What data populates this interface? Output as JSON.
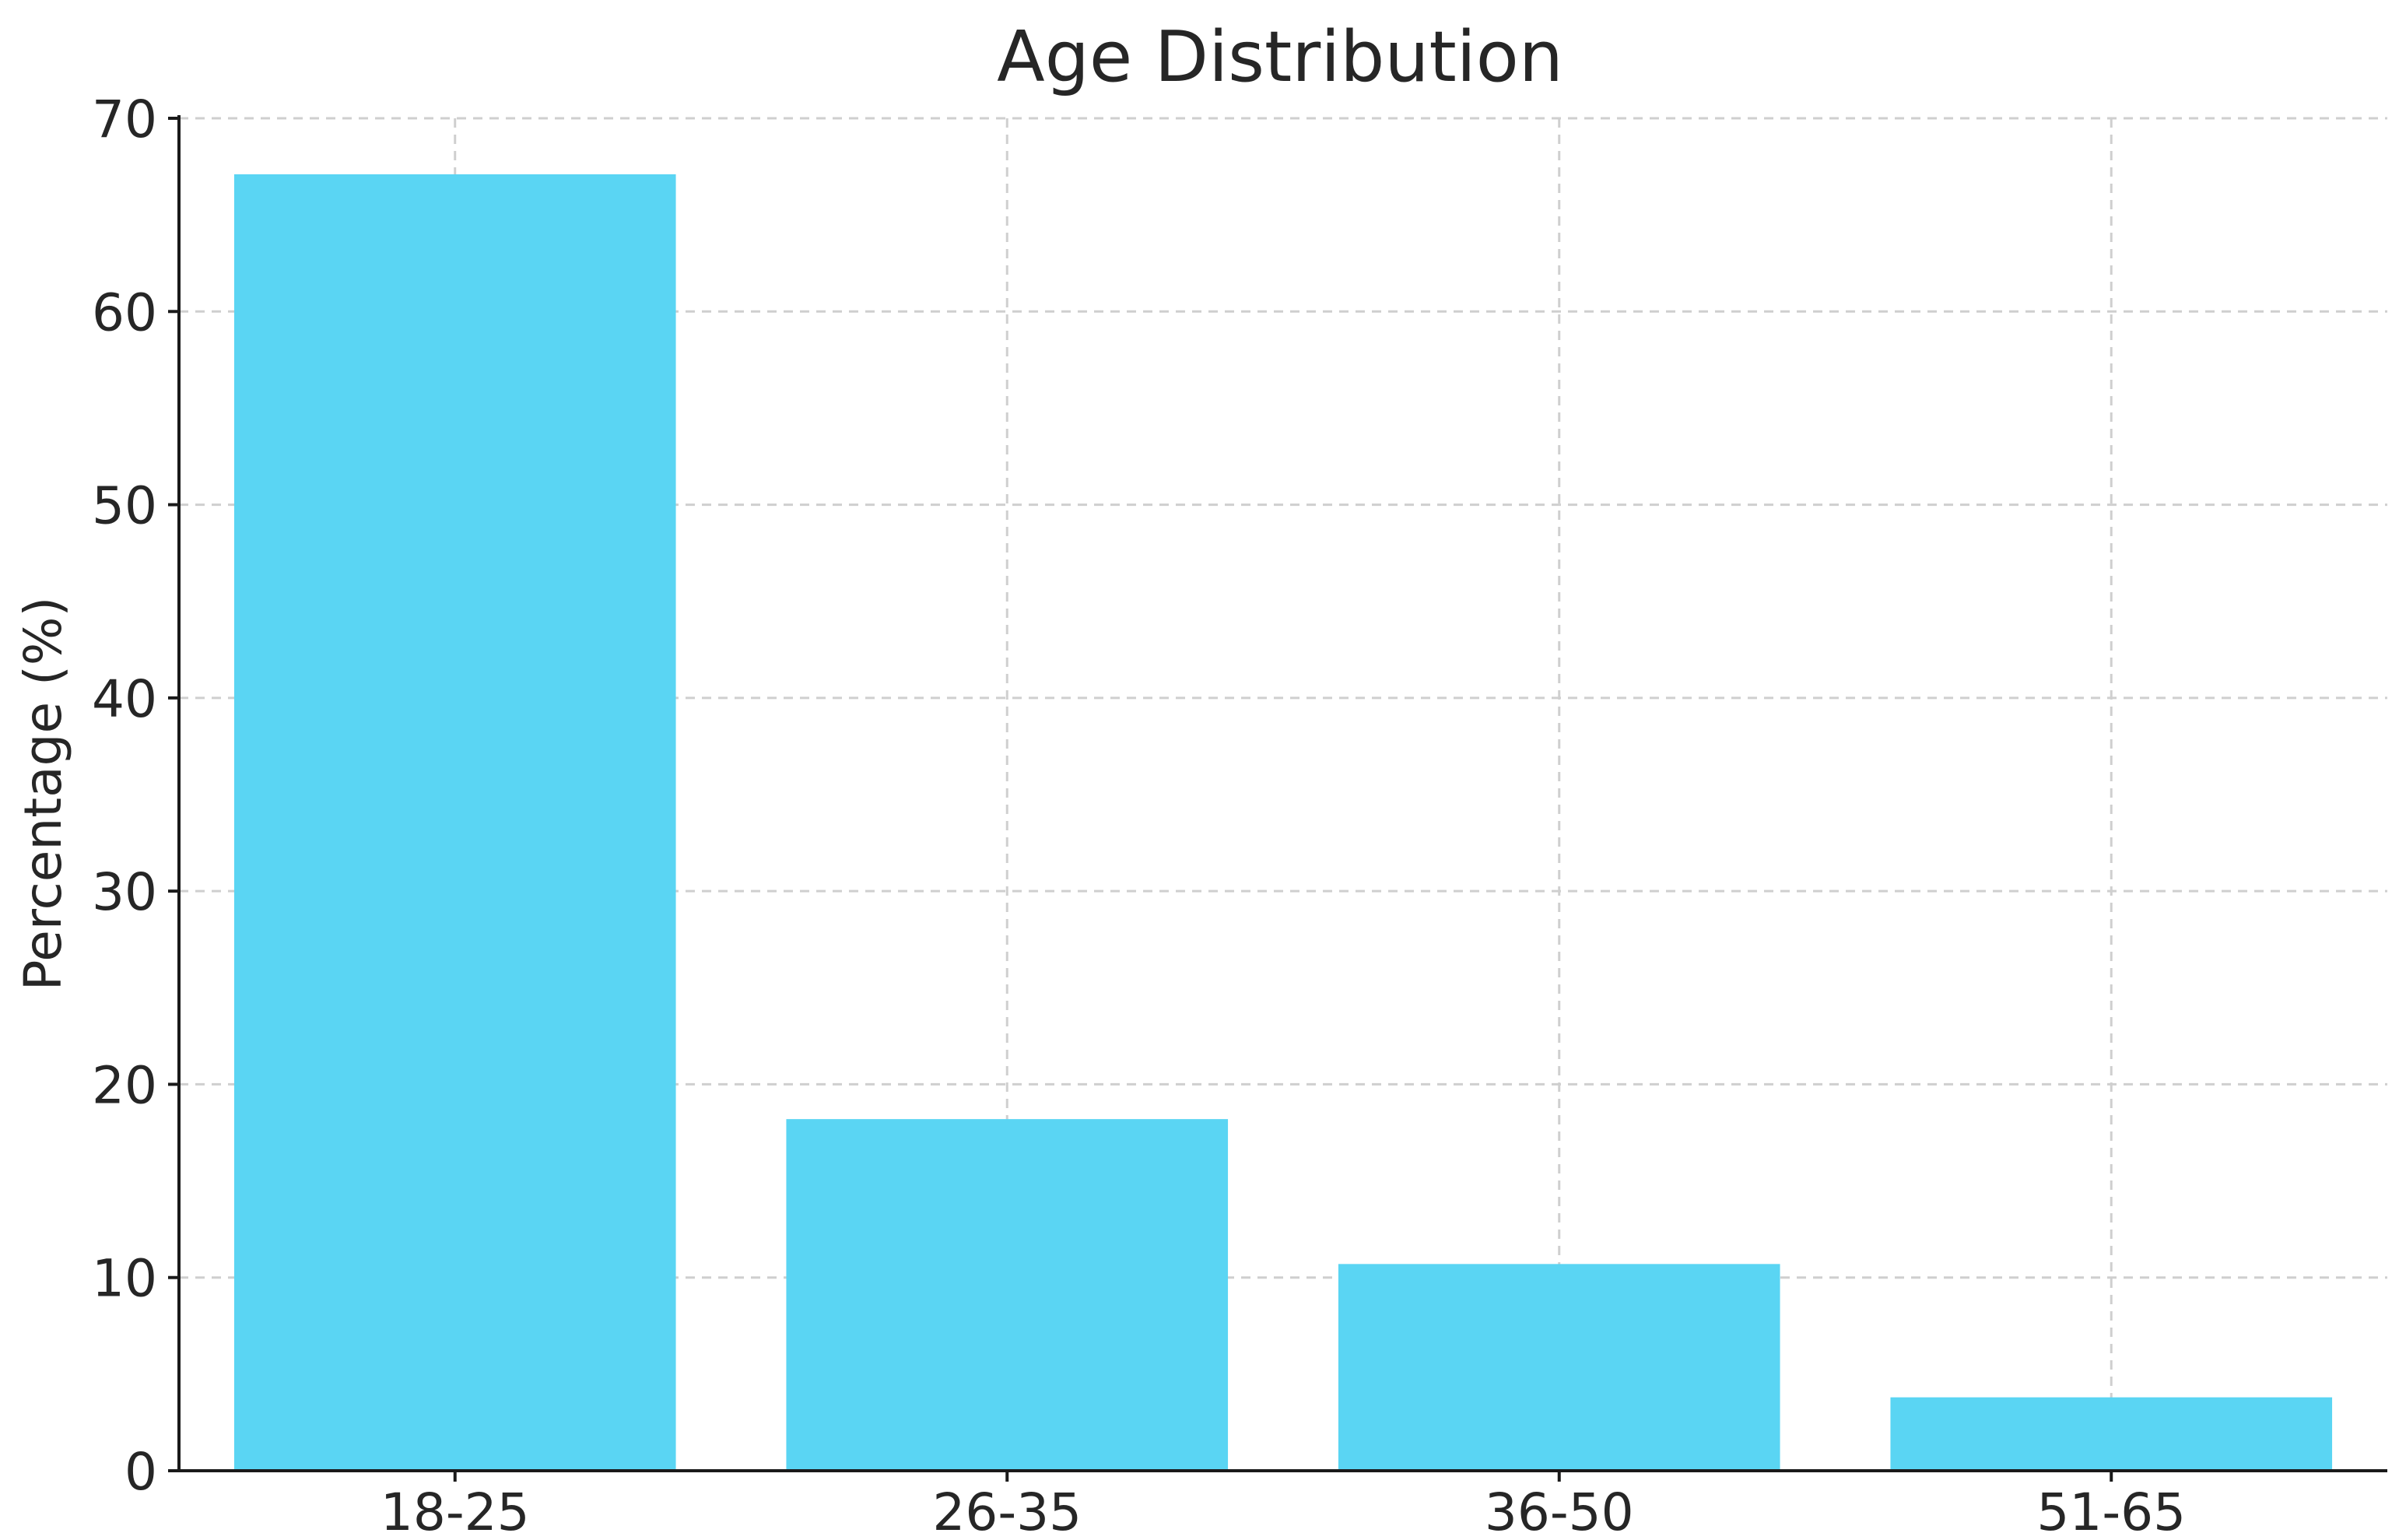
{
  "chart_data": {
    "type": "bar",
    "title": "Age Distribution",
    "xlabel": "",
    "ylabel": "Percentage (%)",
    "categories": [
      "18-25",
      "26-35",
      "36-50",
      "51-65"
    ],
    "values": [
      67.1,
      18.2,
      10.7,
      3.8
    ],
    "ylim": [
      0,
      70
    ],
    "yticks": [
      0,
      10,
      20,
      30,
      40,
      50,
      60,
      70
    ],
    "grid": true,
    "colors": {
      "bar": "#5ad5f3",
      "grid": "#cfcfcf",
      "axis": "#1a1a1a",
      "text": "#262626"
    }
  }
}
